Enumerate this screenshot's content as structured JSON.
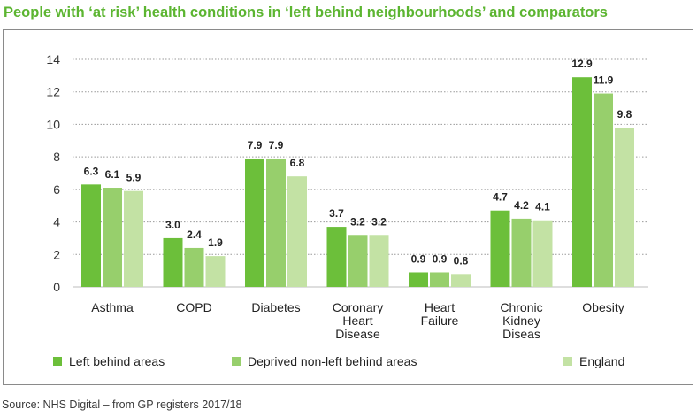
{
  "title": "People with ‘at risk’ health conditions in ‘left behind neighbourhoods’ and comparators",
  "source": "Source: NHS Digital – from GP registers 2017/18",
  "colors": {
    "accent": "#5cb531",
    "gridline": "#9a9a9a",
    "series": [
      "#6cbf3a",
      "#97cf6c",
      "#c3e2a4"
    ]
  },
  "chart_data": {
    "type": "bar",
    "categories": [
      [
        "Asthma"
      ],
      [
        "COPD"
      ],
      [
        "Diabetes"
      ],
      [
        "Coronary",
        "Heart",
        "Disease"
      ],
      [
        "Heart",
        "Failure"
      ],
      [
        "Chronic",
        "Kidney",
        "Diseas"
      ],
      [
        "Obesity"
      ]
    ],
    "series": [
      {
        "name": "Left behind areas",
        "values": [
          6.3,
          3.0,
          7.9,
          3.7,
          0.9,
          4.7,
          12.9
        ],
        "labels": [
          "6.3",
          "3.0",
          "7.9",
          "3.7",
          "0.9",
          "4.7",
          "12.9"
        ]
      },
      {
        "name": "Deprived non-left behind areas",
        "values": [
          6.1,
          2.4,
          7.9,
          3.2,
          0.9,
          4.2,
          11.9
        ],
        "labels": [
          "6.1",
          "2.4",
          "7.9",
          "3.2",
          "0.9",
          "4.2",
          "11.9"
        ]
      },
      {
        "name": "England",
        "values": [
          5.9,
          1.9,
          6.8,
          3.2,
          0.8,
          4.1,
          9.8
        ],
        "labels": [
          "5.9",
          "1.9",
          "6.8",
          "3.2",
          "0.8",
          "4.1",
          "9.8"
        ]
      }
    ],
    "yticks": [
      "0",
      "2",
      "4",
      "6",
      "8",
      "10",
      "12",
      "14"
    ],
    "ylim": [
      0,
      14
    ],
    "grid": true,
    "legend_position": "bottom"
  }
}
